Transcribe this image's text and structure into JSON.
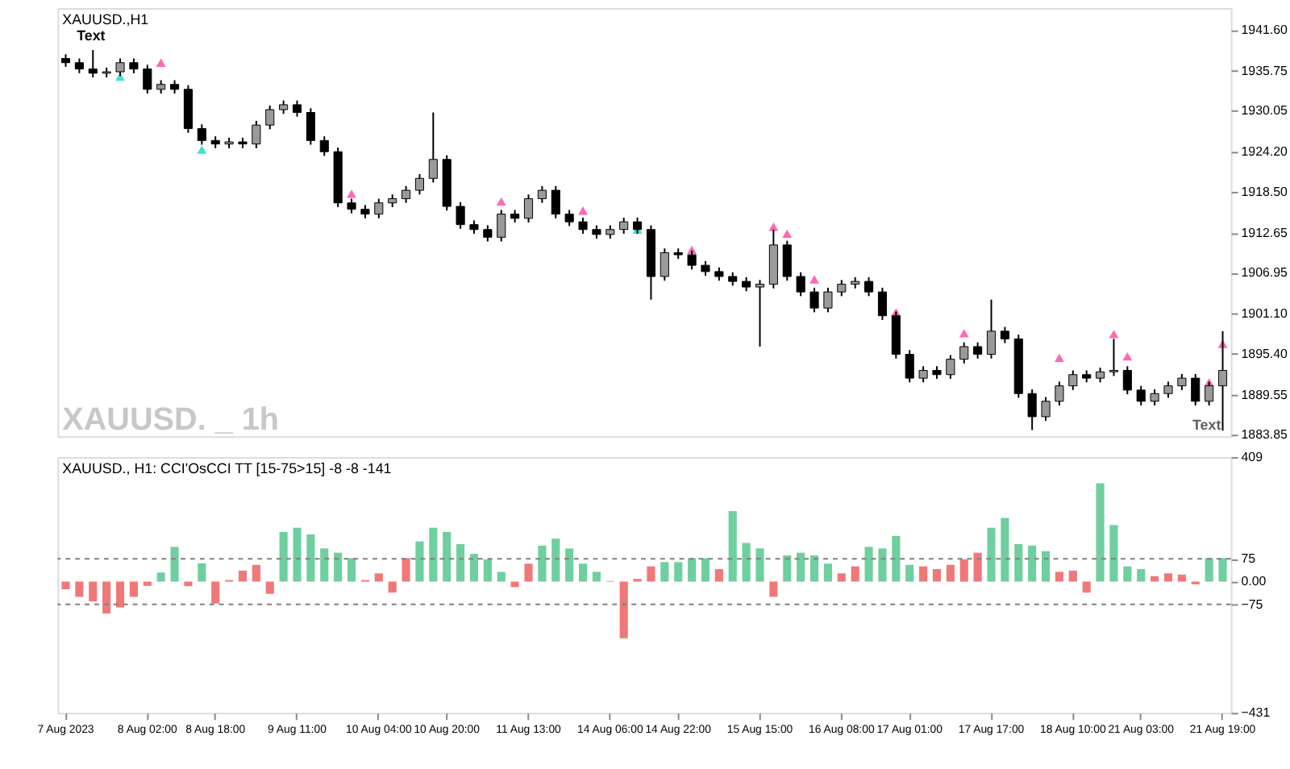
{
  "chart_data": [
    {
      "type": "candlestick",
      "title": "XAUUSD.,H1",
      "annotations": [
        "Text",
        "XAUUSD. _ 1h",
        "Text"
      ],
      "categories": [
        null,
        null,
        null,
        null,
        null,
        null,
        null,
        null,
        null,
        null,
        null,
        null,
        null,
        null,
        null,
        null,
        null,
        null,
        null,
        null,
        null,
        null,
        null,
        null,
        null,
        null,
        null,
        null,
        null,
        null,
        null,
        null,
        null,
        null,
        null,
        null,
        null,
        null,
        null,
        null,
        null,
        null,
        null,
        null,
        null,
        null,
        null,
        null,
        null,
        null,
        null,
        null,
        null,
        null,
        null,
        null,
        null,
        null,
        null,
        null,
        null,
        null,
        null,
        null,
        null,
        null,
        null,
        null,
        null,
        null,
        null,
        null,
        null,
        null,
        null,
        null,
        null,
        null,
        null,
        null,
        null,
        null,
        null,
        null,
        null,
        null
      ],
      "ohlc": [
        [
          1937.5,
          1938.1,
          1936.3,
          1936.9
        ],
        [
          1936.9,
          1937.5,
          1935.4,
          1936.0
        ],
        [
          1936.0,
          1938.7,
          1934.8,
          1935.4
        ],
        [
          1935.4,
          1936.2,
          1934.8,
          1935.6
        ],
        [
          1935.6,
          1937.5,
          1935.0,
          1936.9
        ],
        [
          1936.9,
          1937.5,
          1935.4,
          1936.0
        ],
        [
          1936.0,
          1936.6,
          1932.5,
          1933.1
        ],
        [
          1933.1,
          1934.4,
          1932.5,
          1933.8
        ],
        [
          1933.8,
          1934.4,
          1932.5,
          1933.1
        ],
        [
          1933.1,
          1933.7,
          1926.9,
          1927.5
        ],
        [
          1927.5,
          1928.1,
          1925.2,
          1925.8
        ],
        [
          1925.8,
          1926.4,
          1924.7,
          1925.3
        ],
        [
          1925.3,
          1926.2,
          1924.7,
          1925.6
        ],
        [
          1925.6,
          1926.2,
          1924.7,
          1925.3
        ],
        [
          1925.3,
          1928.6,
          1924.7,
          1928.0
        ],
        [
          1928.0,
          1930.8,
          1927.4,
          1930.2
        ],
        [
          1930.2,
          1931.5,
          1929.6,
          1930.9
        ],
        [
          1930.9,
          1931.5,
          1929.2,
          1929.8
        ],
        [
          1929.8,
          1930.4,
          1925.2,
          1925.8
        ],
        [
          1925.8,
          1926.4,
          1923.6,
          1924.2
        ],
        [
          1924.2,
          1924.8,
          1916.3,
          1916.9
        ],
        [
          1916.9,
          1917.5,
          1915.4,
          1916.0
        ],
        [
          1916.0,
          1916.6,
          1914.7,
          1915.3
        ],
        [
          1915.3,
          1917.5,
          1914.7,
          1916.9
        ],
        [
          1916.9,
          1918.1,
          1916.3,
          1917.5
        ],
        [
          1917.5,
          1919.3,
          1916.9,
          1918.7
        ],
        [
          1918.7,
          1921.0,
          1918.1,
          1920.4
        ],
        [
          1920.4,
          1929.8,
          1919.8,
          1923.1
        ],
        [
          1923.1,
          1923.7,
          1915.8,
          1916.4
        ],
        [
          1916.4,
          1917.0,
          1913.2,
          1913.8
        ],
        [
          1913.8,
          1914.4,
          1912.5,
          1913.1
        ],
        [
          1913.1,
          1913.7,
          1911.4,
          1912.0
        ],
        [
          1912.0,
          1915.9,
          1911.4,
          1915.3
        ],
        [
          1915.3,
          1915.9,
          1914.1,
          1914.7
        ],
        [
          1914.7,
          1918.1,
          1914.1,
          1917.5
        ],
        [
          1917.5,
          1919.3,
          1916.9,
          1918.7
        ],
        [
          1918.7,
          1919.3,
          1914.7,
          1915.3
        ],
        [
          1915.3,
          1915.9,
          1913.6,
          1914.2
        ],
        [
          1914.2,
          1914.8,
          1912.5,
          1913.1
        ],
        [
          1913.1,
          1913.7,
          1911.8,
          1912.4
        ],
        [
          1912.4,
          1913.7,
          1911.8,
          1913.1
        ],
        [
          1913.1,
          1914.8,
          1912.5,
          1914.2
        ],
        [
          1914.2,
          1914.8,
          1912.5,
          1913.1
        ],
        [
          1913.1,
          1913.7,
          1903.1,
          1906.4
        ],
        [
          1906.4,
          1910.4,
          1905.8,
          1909.8
        ],
        [
          1909.8,
          1910.4,
          1908.9,
          1909.5
        ],
        [
          1909.5,
          1910.1,
          1907.4,
          1908.0
        ],
        [
          1908.0,
          1908.6,
          1906.5,
          1907.1
        ],
        [
          1907.1,
          1907.7,
          1905.8,
          1906.4
        ],
        [
          1906.4,
          1907.0,
          1905.1,
          1905.7
        ],
        [
          1905.7,
          1906.3,
          1904.3,
          1904.9
        ],
        [
          1904.9,
          1905.9,
          1896.4,
          1905.3
        ],
        [
          1905.3,
          1913.1,
          1904.7,
          1910.9
        ],
        [
          1910.9,
          1911.5,
          1905.8,
          1906.4
        ],
        [
          1906.4,
          1907.0,
          1903.6,
          1904.2
        ],
        [
          1904.2,
          1904.8,
          1901.3,
          1901.9
        ],
        [
          1901.9,
          1904.8,
          1901.3,
          1904.2
        ],
        [
          1904.2,
          1905.9,
          1903.6,
          1905.3
        ],
        [
          1905.3,
          1906.3,
          1904.7,
          1905.7
        ],
        [
          1905.7,
          1906.3,
          1903.6,
          1904.2
        ],
        [
          1904.2,
          1904.8,
          1900.2,
          1900.8
        ],
        [
          1900.8,
          1901.4,
          1894.7,
          1895.3
        ],
        [
          1895.3,
          1895.9,
          1891.3,
          1891.9
        ],
        [
          1891.9,
          1893.6,
          1891.3,
          1893.0
        ],
        [
          1893.0,
          1893.6,
          1891.8,
          1892.4
        ],
        [
          1892.4,
          1895.2,
          1891.8,
          1894.6
        ],
        [
          1894.6,
          1897.0,
          1894.0,
          1896.4
        ],
        [
          1896.4,
          1897.0,
          1894.7,
          1895.3
        ],
        [
          1895.3,
          1903.1,
          1894.7,
          1898.6
        ],
        [
          1898.6,
          1899.2,
          1896.9,
          1897.5
        ],
        [
          1897.5,
          1898.1,
          1889.1,
          1889.7
        ],
        [
          1889.7,
          1890.3,
          1884.5,
          1886.4
        ],
        [
          1886.4,
          1889.2,
          1885.8,
          1888.6
        ],
        [
          1888.6,
          1891.4,
          1888.0,
          1890.8
        ],
        [
          1890.8,
          1893.0,
          1890.2,
          1892.4
        ],
        [
          1892.4,
          1893.0,
          1891.3,
          1891.9
        ],
        [
          1891.9,
          1893.4,
          1891.3,
          1892.8
        ],
        [
          1892.8,
          1897.5,
          1892.2,
          1893.0
        ],
        [
          1893.0,
          1893.6,
          1889.6,
          1890.2
        ],
        [
          1890.2,
          1890.8,
          1888.0,
          1888.6
        ],
        [
          1888.6,
          1890.3,
          1888.0,
          1889.7
        ],
        [
          1889.7,
          1891.4,
          1889.1,
          1890.8
        ],
        [
          1890.8,
          1892.5,
          1890.2,
          1891.9
        ],
        [
          1891.9,
          1892.5,
          1888.0,
          1888.6
        ],
        [
          1888.6,
          1891.4,
          1888.0,
          1890.8
        ],
        [
          1890.8,
          1898.6,
          1884.4,
          1893.0
        ]
      ],
      "series": [
        {
          "type": "scatter",
          "color": "#ff69b4",
          "marker": "triangle",
          "values": [
            null,
            null,
            null,
            null,
            null,
            null,
            null,
            1936.9,
            null,
            null,
            null,
            null,
            null,
            null,
            null,
            null,
            null,
            null,
            null,
            null,
            null,
            1918.2,
            null,
            null,
            null,
            null,
            null,
            null,
            null,
            null,
            null,
            null,
            1917.1,
            null,
            null,
            null,
            null,
            null,
            1915.8,
            null,
            null,
            null,
            null,
            null,
            null,
            null,
            1910.2,
            null,
            null,
            null,
            null,
            null,
            1913.5,
            1912.5,
            null,
            1906.0,
            null,
            null,
            null,
            null,
            null,
            1901.3,
            null,
            null,
            null,
            null,
            1898.3,
            null,
            null,
            null,
            null,
            null,
            null,
            1894.8,
            null,
            null,
            null,
            1898.2,
            1895.0,
            null,
            null,
            null,
            null,
            null,
            1891.3,
            1896.8
          ]
        },
        {
          "type": "scatter",
          "color": "#40e0d0",
          "marker": "triangle",
          "values": [
            null,
            null,
            null,
            null,
            1934.9,
            null,
            null,
            null,
            null,
            null,
            1924.5,
            null,
            null,
            null,
            null,
            null,
            null,
            null,
            null,
            null,
            null,
            null,
            null,
            null,
            null,
            null,
            null,
            null,
            null,
            null,
            null,
            null,
            null,
            null,
            null,
            null,
            null,
            null,
            null,
            null,
            null,
            null,
            1913.1,
            null,
            null,
            null,
            null,
            null,
            null,
            null,
            null,
            null,
            null,
            null,
            null,
            null,
            null,
            null,
            null,
            null,
            null,
            null,
            null,
            null,
            null,
            null,
            null,
            null,
            null,
            null,
            null,
            null,
            null,
            null,
            null,
            null,
            null,
            null,
            null,
            null,
            null,
            null,
            null,
            null,
            null,
            null
          ]
        }
      ],
      "ylim": [
        1883.6,
        1944.7
      ],
      "yticks": [
        {
          "value": 1941.6,
          "label": "1941.60"
        },
        {
          "value": 1935.75,
          "label": "1935.75"
        },
        {
          "value": 1930.05,
          "label": "1930.05"
        },
        {
          "value": 1924.2,
          "label": "1924.20"
        },
        {
          "value": 1918.5,
          "label": "1918.50"
        },
        {
          "value": 1912.65,
          "label": "1912.65"
        },
        {
          "value": 1906.95,
          "label": "1906.95"
        },
        {
          "value": 1901.1,
          "label": "1901.10"
        },
        {
          "value": 1895.4,
          "label": "1895.40"
        },
        {
          "value": 1889.55,
          "label": "1889.55"
        },
        {
          "value": 1883.85,
          "label": "1883.85"
        }
      ],
      "tick_labels": "y"
    },
    {
      "type": "bar",
      "title": "XAUUSD., H1: CCI'OsCCI TT [15-75>15]  -8 -8 -141",
      "categories": [
        "7 Aug 2023",
        null,
        null,
        null,
        null,
        null,
        "8 Aug 02:00",
        null,
        null,
        null,
        null,
        "8 Aug 18:00",
        null,
        null,
        null,
        null,
        null,
        "9 Aug 11:00",
        null,
        null,
        null,
        null,
        null,
        "10 Aug 04:00",
        null,
        null,
        null,
        null,
        "10 Aug 20:00",
        null,
        null,
        null,
        null,
        null,
        "11 Aug 13:00",
        null,
        null,
        null,
        null,
        null,
        "14 Aug 06:00",
        null,
        null,
        null,
        null,
        "14 Aug 22:00",
        null,
        null,
        null,
        null,
        null,
        "15 Aug 15:00",
        null,
        null,
        null,
        null,
        null,
        "16 Aug 08:00",
        null,
        null,
        null,
        null,
        "17 Aug 01:00",
        null,
        null,
        null,
        null,
        null,
        "17 Aug 17:00",
        null,
        null,
        null,
        null,
        null,
        "18 Aug 10:00",
        null,
        null,
        null,
        null,
        "21 Aug 03:00",
        null,
        null,
        null,
        null,
        null,
        "21 Aug 19:00"
      ],
      "values": [
        -25,
        -50,
        -65,
        -105,
        -85,
        -50,
        -14,
        30,
        114,
        -15,
        60,
        -72,
        5,
        36,
        55,
        -40,
        163,
        177,
        155,
        109,
        95,
        77,
        5,
        27,
        -36,
        77,
        132,
        177,
        163,
        123,
        91,
        73,
        32,
        -18,
        59,
        118,
        141,
        109,
        59,
        32,
        2,
        -186,
        9,
        50,
        64,
        64,
        77,
        77,
        41,
        232,
        127,
        109,
        -50,
        86,
        95,
        86,
        59,
        27,
        50,
        114,
        109,
        150,
        55,
        50,
        41,
        55,
        73,
        95,
        177,
        209,
        123,
        118,
        100,
        32,
        36,
        -36,
        323,
        186,
        50,
        41,
        18,
        27,
        23,
        -9,
        77,
        77
      ],
      "colors": [
        "#f07878",
        "#f07878",
        "#f07878",
        "#f07878",
        "#f07878",
        "#f07878",
        "#f07878",
        "#6fcf9f",
        "#6fcf9f",
        "#f07878",
        "#6fcf9f",
        "#f07878",
        "#f07878",
        "#f07878",
        "#f07878",
        "#f07878",
        "#6fcf9f",
        "#6fcf9f",
        "#6fcf9f",
        "#6fcf9f",
        "#6fcf9f",
        "#6fcf9f",
        "#f07878",
        "#f07878",
        "#f07878",
        "#f07878",
        "#6fcf9f",
        "#6fcf9f",
        "#6fcf9f",
        "#6fcf9f",
        "#6fcf9f",
        "#6fcf9f",
        "#6fcf9f",
        "#f07878",
        "#f07878",
        "#6fcf9f",
        "#6fcf9f",
        "#6fcf9f",
        "#6fcf9f",
        "#6fcf9f",
        "#f07878",
        "#f07878",
        "#f07878",
        "#f07878",
        "#6fcf9f",
        "#6fcf9f",
        "#6fcf9f",
        "#6fcf9f",
        "#f07878",
        "#6fcf9f",
        "#6fcf9f",
        "#6fcf9f",
        "#f07878",
        "#6fcf9f",
        "#6fcf9f",
        "#6fcf9f",
        "#6fcf9f",
        "#f07878",
        "#f07878",
        "#6fcf9f",
        "#6fcf9f",
        "#6fcf9f",
        "#6fcf9f",
        "#f07878",
        "#f07878",
        "#f07878",
        "#f07878",
        "#f07878",
        "#6fcf9f",
        "#6fcf9f",
        "#6fcf9f",
        "#6fcf9f",
        "#6fcf9f",
        "#f07878",
        "#f07878",
        "#f07878",
        "#6fcf9f",
        "#6fcf9f",
        "#6fcf9f",
        "#6fcf9f",
        "#f07878",
        "#f07878",
        "#f07878",
        "#f07878",
        "#6fcf9f",
        "#6fcf9f"
      ],
      "ylim": [
        -431,
        409
      ],
      "yticks": [
        409,
        75,
        {
          "value": 0,
          "label": "0.00"
        },
        -75,
        -431
      ],
      "ref_lines": [
        {
          "axis": "y",
          "value": 75,
          "color": "#808080",
          "line_style": "dashed"
        },
        {
          "axis": "y",
          "value": -75,
          "color": "#808080",
          "line_style": "dashed"
        }
      ]
    }
  ]
}
